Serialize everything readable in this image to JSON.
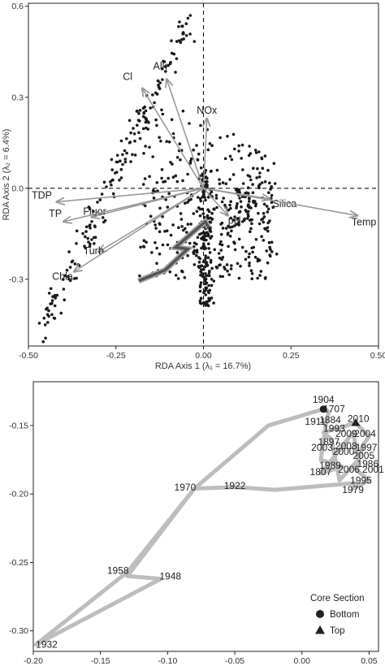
{
  "colors": {
    "points": "#1a1a1a",
    "arrows": "#9a9a9a",
    "track_inner": "#555555",
    "track_outer": "#a8a8a8",
    "panel2_path": "#bdbdbd",
    "axis": "#222222"
  },
  "chart_data": [
    {
      "type": "scatter",
      "title": "",
      "xlabel": "RDA Axis 1 (λ₁ = 16.7%)",
      "ylabel": "RDA Axis 2 (λ₂ = 6.4%)",
      "xlim": [
        -0.5,
        0.5
      ],
      "ylim": [
        -0.52,
        0.61
      ],
      "xticks": [
        "-0.50",
        "-0.25",
        "0.00",
        "0.25",
        "0.50"
      ],
      "xtick_values": [
        -0.5,
        -0.25,
        0.0,
        0.25,
        0.5
      ],
      "yticks": [
        "0.6",
        "0.3",
        "0.0",
        "-0.3"
      ],
      "ytick_values": [
        0.6,
        0.3,
        0.0,
        -0.3
      ],
      "grid": false,
      "reference_lines": {
        "x": 0,
        "y": 0,
        "style": "dashed"
      },
      "environmental_vectors": [
        {
          "label": "Cl",
          "x": -0.175,
          "y": 0.33
        },
        {
          "label": "Alk",
          "x": -0.105,
          "y": 0.36
        },
        {
          "label": "NOx",
          "x": 0.01,
          "y": 0.23
        },
        {
          "label": "Silica",
          "x": 0.19,
          "y": -0.035
        },
        {
          "label": "Temp",
          "x": 0.44,
          "y": -0.09
        },
        {
          "label": "pH",
          "x": 0.07,
          "y": -0.09
        },
        {
          "label": "TDP",
          "x": -0.42,
          "y": -0.045
        },
        {
          "label": "Fluor",
          "x": -0.32,
          "y": -0.095
        },
        {
          "label": "TP",
          "x": -0.4,
          "y": -0.11
        },
        {
          "label": "Turb",
          "x": -0.3,
          "y": -0.21
        },
        {
          "label": "Chla",
          "x": -0.37,
          "y": -0.275
        }
      ],
      "core_trajectory": [
        {
          "x": 0.015,
          "y": -0.13
        },
        {
          "x": 0.005,
          "y": -0.11
        },
        {
          "x": -0.08,
          "y": -0.195
        },
        {
          "x": -0.045,
          "y": -0.2
        },
        {
          "x": -0.11,
          "y": -0.27
        },
        {
          "x": -0.185,
          "y": -0.305
        }
      ]
    },
    {
      "type": "line",
      "title": "",
      "xlabel": "",
      "ylabel": "",
      "xlim": [
        -0.2,
        0.057
      ],
      "ylim": [
        -0.315,
        -0.118
      ],
      "xticks": [
        "-0.20",
        "-0.15",
        "-0.10",
        "-0.05",
        "0.00",
        "0.05"
      ],
      "xtick_values": [
        -0.2,
        -0.15,
        -0.1,
        -0.05,
        0.0,
        0.05
      ],
      "yticks": [
        "-0.15",
        "-0.20",
        "-0.25",
        "-0.30"
      ],
      "ytick_values": [
        -0.15,
        -0.2,
        -0.25,
        -0.3
      ],
      "grid": false,
      "legend": {
        "title": "Core Section",
        "placement": "bottom-right",
        "entries": [
          {
            "label": "Bottom",
            "shape": "circle"
          },
          {
            "label": "Top",
            "shape": "triangle"
          }
        ]
      },
      "bottom_marker": {
        "x": 0.016,
        "y": -0.138
      },
      "top_marker": {
        "x": 0.04,
        "y": -0.148
      },
      "path": [
        {
          "x": 0.016,
          "y": -0.138
        },
        {
          "x": 0.02,
          "y": -0.14
        },
        {
          "x": 0.018,
          "y": -0.148
        },
        {
          "x": 0.014,
          "y": -0.175
        },
        {
          "x": 0.03,
          "y": -0.18
        },
        {
          "x": 0.014,
          "y": -0.185
        },
        {
          "x": 0.028,
          "y": -0.168
        },
        {
          "x": 0.038,
          "y": -0.155
        },
        {
          "x": 0.042,
          "y": -0.175
        },
        {
          "x": 0.028,
          "y": -0.19
        },
        {
          "x": 0.022,
          "y": -0.16
        },
        {
          "x": 0.016,
          "y": -0.155
        },
        {
          "x": 0.04,
          "y": -0.148
        },
        {
          "x": 0.05,
          "y": -0.158
        },
        {
          "x": 0.045,
          "y": -0.165
        },
        {
          "x": 0.04,
          "y": -0.182
        },
        {
          "x": 0.05,
          "y": -0.19
        },
        {
          "x": 0.038,
          "y": -0.196
        },
        {
          "x": 0.04,
          "y": -0.192
        },
        {
          "x": -0.02,
          "y": -0.197
        },
        {
          "x": -0.05,
          "y": -0.195
        },
        {
          "x": -0.08,
          "y": -0.196
        },
        {
          "x": -0.13,
          "y": -0.26
        },
        {
          "x": -0.105,
          "y": -0.262
        },
        {
          "x": -0.198,
          "y": -0.31
        },
        {
          "x": -0.13,
          "y": -0.257
        },
        {
          "x": -0.08,
          "y": -0.196
        },
        {
          "x": -0.025,
          "y": -0.15
        },
        {
          "x": 0.016,
          "y": -0.138
        }
      ],
      "year_labels": [
        {
          "label": "1904",
          "x": 0.016,
          "y": -0.131
        },
        {
          "label": "1707",
          "x": 0.024,
          "y": -0.138
        },
        {
          "label": "1911",
          "x": 0.01,
          "y": -0.147
        },
        {
          "label": "1884",
          "x": 0.021,
          "y": -0.146
        },
        {
          "label": "2010",
          "x": 0.042,
          "y": -0.145
        },
        {
          "label": "1993",
          "x": 0.024,
          "y": -0.152
        },
        {
          "label": "2009",
          "x": 0.033,
          "y": -0.156
        },
        {
          "label": "2004",
          "x": 0.047,
          "y": -0.156
        },
        {
          "label": "1897",
          "x": 0.02,
          "y": -0.162
        },
        {
          "label": "2003",
          "x": 0.015,
          "y": -0.166
        },
        {
          "label": "2008",
          "x": 0.033,
          "y": -0.165
        },
        {
          "label": "1997",
          "x": 0.048,
          "y": -0.166
        },
        {
          "label": "2000",
          "x": 0.031,
          "y": -0.169
        },
        {
          "label": "2005",
          "x": 0.046,
          "y": -0.172
        },
        {
          "label": "1986",
          "x": 0.049,
          "y": -0.178
        },
        {
          "label": "1989",
          "x": 0.021,
          "y": -0.179
        },
        {
          "label": "2006",
          "x": 0.035,
          "y": -0.182
        },
        {
          "label": "2001",
          "x": 0.053,
          "y": -0.182
        },
        {
          "label": "1807",
          "x": 0.014,
          "y": -0.184
        },
        {
          "label": "1995",
          "x": 0.044,
          "y": -0.19
        },
        {
          "label": "1979",
          "x": 0.038,
          "y": -0.197
        },
        {
          "label": "1922",
          "x": -0.05,
          "y": -0.194
        },
        {
          "label": "1970",
          "x": -0.087,
          "y": -0.195
        },
        {
          "label": "1958",
          "x": -0.137,
          "y": -0.256
        },
        {
          "label": "1948",
          "x": -0.098,
          "y": -0.26
        },
        {
          "label": "1932",
          "x": -0.19,
          "y": -0.31
        }
      ]
    }
  ]
}
